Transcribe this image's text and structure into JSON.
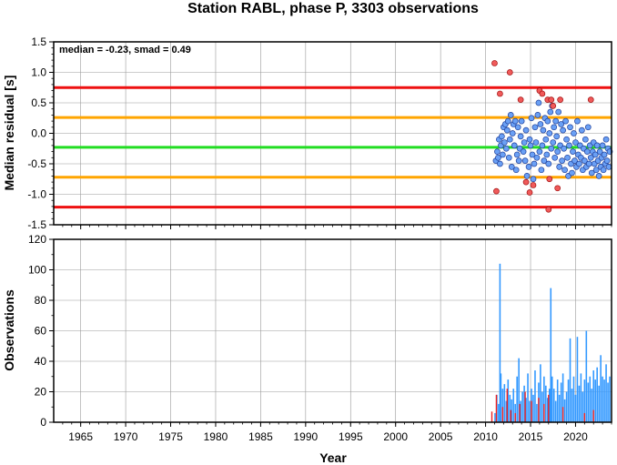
{
  "chart_data": [
    {
      "type": "scatter",
      "title": "Station RABL, phase P, 3303 observations",
      "ylabel": "Median residual [s]",
      "annotation": "median = -0.23, smad = 0.49",
      "xlim": [
        1962,
        2024
      ],
      "ylim": [
        -1.5,
        1.5
      ],
      "yticks": [
        "1.5",
        "1.0",
        "0.5",
        "0.0",
        "-0.5",
        "-1.0",
        "-1.5"
      ],
      "grid": true,
      "reference_lines": [
        {
          "y": 0.75,
          "color": "#ee1111"
        },
        {
          "y": 0.26,
          "color": "#ffa500"
        },
        {
          "y": -0.23,
          "color": "#22dd22"
        },
        {
          "y": -0.72,
          "color": "#ffa500"
        },
        {
          "y": -1.21,
          "color": "#ee1111"
        }
      ],
      "colors": {
        "inlier": "#6aa0f5",
        "outlier": "#f05a5a"
      },
      "series": [
        {
          "points": [
            [
              2011.15,
              -0.45
            ],
            [
              2011.3,
              -0.3
            ],
            [
              2011.4,
              -0.4
            ],
            [
              2011.5,
              -0.1
            ],
            [
              2011.6,
              -0.5
            ],
            [
              2011.7,
              -0.2
            ],
            [
              2011.8,
              -0.05
            ],
            [
              2011.9,
              -0.35
            ],
            [
              2012.0,
              0.1
            ],
            [
              2012.1,
              -0.15
            ],
            [
              2012.2,
              0.15
            ],
            [
              2012.3,
              -0.25
            ],
            [
              2012.4,
              0.05
            ],
            [
              2012.5,
              0.2
            ],
            [
              2012.6,
              -0.4
            ],
            [
              2012.7,
              -0.1
            ],
            [
              2012.8,
              0.3
            ],
            [
              2012.9,
              -0.55
            ],
            [
              2013.0,
              0.0
            ],
            [
              2013.1,
              0.15
            ],
            [
              2013.2,
              -0.2
            ],
            [
              2013.3,
              0.2
            ],
            [
              2013.4,
              -0.6
            ],
            [
              2013.5,
              -0.35
            ],
            [
              2013.6,
              0.1
            ],
            [
              2013.7,
              -0.45
            ],
            [
              2013.8,
              -0.25
            ],
            [
              2013.9,
              -0.05
            ],
            [
              2014.0,
              0.2
            ],
            [
              2014.2,
              -0.3
            ],
            [
              2014.3,
              -0.15
            ],
            [
              2014.4,
              -0.45
            ],
            [
              2014.5,
              0.05
            ],
            [
              2014.6,
              -0.7
            ],
            [
              2014.8,
              -0.55
            ],
            [
              2014.9,
              -0.1
            ],
            [
              2015.0,
              -0.2
            ],
            [
              2015.1,
              0.25
            ],
            [
              2015.2,
              -0.35
            ],
            [
              2015.3,
              -0.75
            ],
            [
              2015.4,
              -0.5
            ],
            [
              2015.5,
              0.1
            ],
            [
              2015.6,
              -0.15
            ],
            [
              2015.7,
              -0.4
            ],
            [
              2015.8,
              0.3
            ],
            [
              2015.9,
              0.5
            ],
            [
              2016.0,
              -0.3
            ],
            [
              2016.1,
              0.15
            ],
            [
              2016.2,
              -0.6
            ],
            [
              2016.3,
              -0.2
            ],
            [
              2016.4,
              0.05
            ],
            [
              2016.5,
              -0.45
            ],
            [
              2016.6,
              0.25
            ],
            [
              2016.7,
              -0.1
            ],
            [
              2016.8,
              -0.35
            ],
            [
              2016.9,
              0.2
            ],
            [
              2017.0,
              -0.5
            ],
            [
              2017.1,
              0.0
            ],
            [
              2017.2,
              0.35
            ],
            [
              2017.3,
              -0.25
            ],
            [
              2017.4,
              0.45
            ],
            [
              2017.5,
              -0.15
            ],
            [
              2017.6,
              0.1
            ],
            [
              2017.7,
              -0.4
            ],
            [
              2017.8,
              0.2
            ],
            [
              2017.9,
              -0.05
            ],
            [
              2018.0,
              -0.3
            ],
            [
              2018.1,
              0.35
            ],
            [
              2018.2,
              -0.55
            ],
            [
              2018.3,
              -0.2
            ],
            [
              2018.4,
              0.15
            ],
            [
              2018.5,
              -0.45
            ],
            [
              2018.6,
              0.05
            ],
            [
              2018.7,
              -0.25
            ],
            [
              2018.8,
              -0.6
            ],
            [
              2018.9,
              0.2
            ],
            [
              2019.0,
              -0.1
            ],
            [
              2019.1,
              -0.4
            ],
            [
              2019.2,
              -0.7
            ],
            [
              2019.3,
              -0.2
            ],
            [
              2019.4,
              0.1
            ],
            [
              2019.5,
              -0.5
            ],
            [
              2019.6,
              -0.65
            ],
            [
              2019.7,
              -0.3
            ],
            [
              2019.8,
              0.0
            ],
            [
              2019.9,
              -0.45
            ],
            [
              2020.0,
              -0.15
            ],
            [
              2020.1,
              -0.55
            ],
            [
              2020.2,
              0.2
            ],
            [
              2020.3,
              -0.35
            ],
            [
              2020.4,
              -0.5
            ],
            [
              2020.5,
              -0.2
            ],
            [
              2020.6,
              -0.4
            ],
            [
              2020.7,
              0.05
            ],
            [
              2020.8,
              -0.6
            ],
            [
              2020.9,
              -0.25
            ],
            [
              2021.0,
              -0.45
            ],
            [
              2021.1,
              -0.1
            ],
            [
              2021.2,
              -0.55
            ],
            [
              2021.3,
              -0.3
            ],
            [
              2021.4,
              0.1
            ],
            [
              2021.5,
              -0.5
            ],
            [
              2021.6,
              -0.2
            ],
            [
              2021.7,
              -0.4
            ],
            [
              2021.8,
              -0.65
            ],
            [
              2021.9,
              -0.3
            ],
            [
              2022.0,
              -0.15
            ],
            [
              2022.1,
              -0.5
            ],
            [
              2022.2,
              -0.35
            ],
            [
              2022.3,
              -0.6
            ],
            [
              2022.4,
              -0.2
            ],
            [
              2022.5,
              -0.45
            ],
            [
              2022.6,
              -0.7
            ],
            [
              2022.7,
              -0.3
            ],
            [
              2022.8,
              -0.55
            ],
            [
              2022.9,
              -0.4
            ],
            [
              2023.0,
              -0.2
            ],
            [
              2023.1,
              -0.6
            ],
            [
              2023.2,
              -0.35
            ],
            [
              2023.3,
              -0.5
            ],
            [
              2023.4,
              -0.1
            ],
            [
              2023.5,
              -0.45
            ],
            [
              2023.6,
              -0.25
            ],
            [
              2023.7,
              -0.55
            ],
            [
              2023.8,
              -0.3
            ]
          ]
        },
        {
          "points": [
            [
              2011.0,
              1.15
            ],
            [
              2011.2,
              -0.95
            ],
            [
              2011.6,
              0.65
            ],
            [
              2012.7,
              1.0
            ],
            [
              2013.9,
              0.55
            ],
            [
              2014.5,
              -0.8
            ],
            [
              2014.9,
              -0.97
            ],
            [
              2015.3,
              -0.85
            ],
            [
              2016.0,
              0.7
            ],
            [
              2016.3,
              0.65
            ],
            [
              2016.9,
              0.55
            ],
            [
              2017.1,
              -0.75
            ],
            [
              2017.3,
              0.55
            ],
            [
              2017.5,
              0.45
            ],
            [
              2017.0,
              -1.25
            ],
            [
              2018.0,
              -0.9
            ],
            [
              2018.3,
              0.55
            ],
            [
              2021.7,
              0.55
            ]
          ]
        }
      ]
    },
    {
      "type": "bar",
      "ylabel": "Observations",
      "xlabel": "Year",
      "xlim": [
        1962,
        2024
      ],
      "ylim": [
        0,
        120
      ],
      "xticks": [
        "1965",
        "1970",
        "1975",
        "1980",
        "1985",
        "1990",
        "1995",
        "2000",
        "2005",
        "2010",
        "2015",
        "2020"
      ],
      "yticks": [
        "0",
        "20",
        "40",
        "60",
        "80",
        "100",
        "120"
      ],
      "grid": true,
      "colors": {
        "primary": "#3399ff",
        "secondary": "#ee2222"
      },
      "series": [
        {
          "x": [
            2011.05,
            2011.25,
            2011.45,
            2011.6,
            2011.7,
            2011.9,
            2012.1,
            2012.3,
            2012.5,
            2012.7,
            2012.9,
            2013.1,
            2013.3,
            2013.5,
            2013.7,
            2013.9,
            2014.1,
            2014.3,
            2014.5,
            2014.7,
            2014.9,
            2015.1,
            2015.3,
            2015.5,
            2015.7,
            2015.9,
            2016.1,
            2016.3,
            2016.5,
            2016.7,
            2016.9,
            2017.1,
            2017.25,
            2017.4,
            2017.6,
            2017.8,
            2018.0,
            2018.2,
            2018.4,
            2018.6,
            2018.8,
            2019.0,
            2019.2,
            2019.4,
            2019.6,
            2019.8,
            2020.0,
            2020.2,
            2020.4,
            2020.6,
            2020.8,
            2021.0,
            2021.2,
            2021.4,
            2021.6,
            2021.8,
            2022.0,
            2022.2,
            2022.4,
            2022.6,
            2022.8,
            2023.0,
            2023.2,
            2023.4,
            2023.6,
            2023.8
          ],
          "values": [
            6,
            18,
            12,
            104,
            32,
            22,
            25,
            14,
            28,
            18,
            15,
            22,
            12,
            30,
            42,
            14,
            20,
            24,
            16,
            32,
            14,
            22,
            18,
            34,
            12,
            26,
            38,
            20,
            30,
            24,
            16,
            22,
            88,
            30,
            22,
            14,
            28,
            18,
            26,
            32,
            15,
            20,
            28,
            55,
            22,
            30,
            18,
            56,
            24,
            32,
            20,
            28,
            60,
            26,
            30,
            22,
            34,
            28,
            36,
            24,
            44,
            30,
            28,
            38,
            26,
            30
          ]
        },
        {
          "x": [
            2010.7,
            2011.2,
            2011.9,
            2012.4,
            2012.8,
            2013.3,
            2013.8,
            2014.4,
            2015.1,
            2015.9,
            2016.5,
            2017.0,
            2018.6,
            2021.0,
            2022.0
          ],
          "values": [
            7,
            18,
            10,
            22,
            8,
            6,
            12,
            20,
            14,
            16,
            12,
            18,
            10,
            6,
            8
          ]
        }
      ]
    }
  ]
}
